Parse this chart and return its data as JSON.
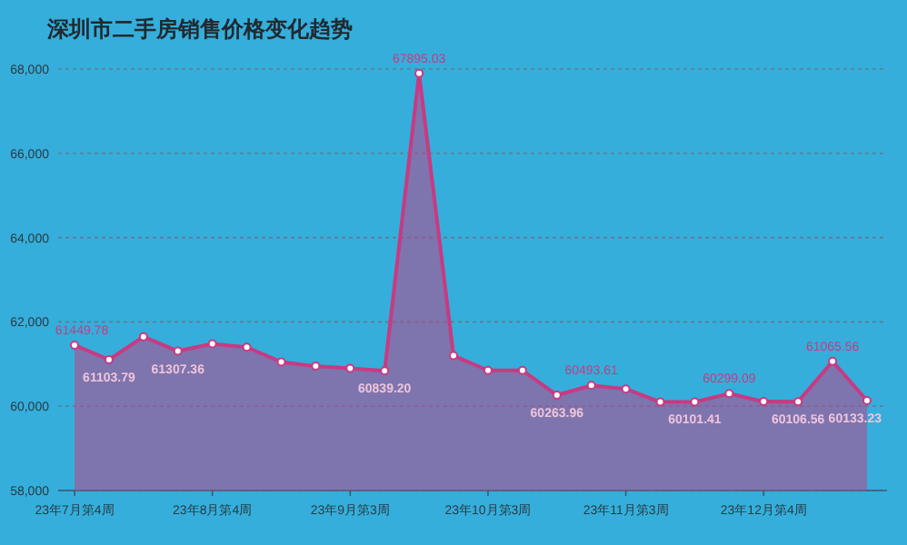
{
  "chart_data": {
    "type": "area",
    "title": "深圳市二手房销售价格变化趋势",
    "categories": [
      "23年7月第4周",
      null,
      null,
      null,
      "23年8月第4周",
      null,
      null,
      null,
      "23年9月第3周",
      null,
      null,
      null,
      "23年10月第3周",
      null,
      null,
      null,
      "23年11月第3周",
      null,
      null,
      null,
      "23年12月第4周",
      null,
      null,
      null
    ],
    "series": [
      {
        "color": "#c83a82",
        "values": [
          61449.78,
          61103.79,
          61650,
          61307.36,
          61480,
          61400,
          61050,
          60950,
          60900,
          60839.2,
          67895.03,
          61200,
          60850,
          60850,
          60263.96,
          60493.61,
          60410,
          60100,
          60101.41,
          60299.09,
          60110,
          60106.56,
          61065.56,
          60133.23
        ],
        "value_labels": [
          "61449.78",
          "61103.79",
          null,
          "61307.36",
          null,
          null,
          null,
          null,
          null,
          "60839.20",
          "67895.03",
          null,
          null,
          null,
          "60263.96",
          "60493.61",
          null,
          null,
          "60101.41",
          "60299.09",
          null,
          "60106.56",
          "61065.56",
          "60133.23"
        ]
      }
    ],
    "ylim": [
      58000,
      68000
    ],
    "yticks": [
      {
        "value": 58000,
        "label": "58,000"
      },
      {
        "value": 60000,
        "label": "60,000"
      },
      {
        "value": 62000,
        "label": "62,000"
      },
      {
        "value": 64000,
        "label": "64,000"
      },
      {
        "value": 66000,
        "label": "66,000"
      },
      {
        "value": 68000,
        "label": "68,000"
      }
    ],
    "grid": "y",
    "marker": "circle"
  }
}
